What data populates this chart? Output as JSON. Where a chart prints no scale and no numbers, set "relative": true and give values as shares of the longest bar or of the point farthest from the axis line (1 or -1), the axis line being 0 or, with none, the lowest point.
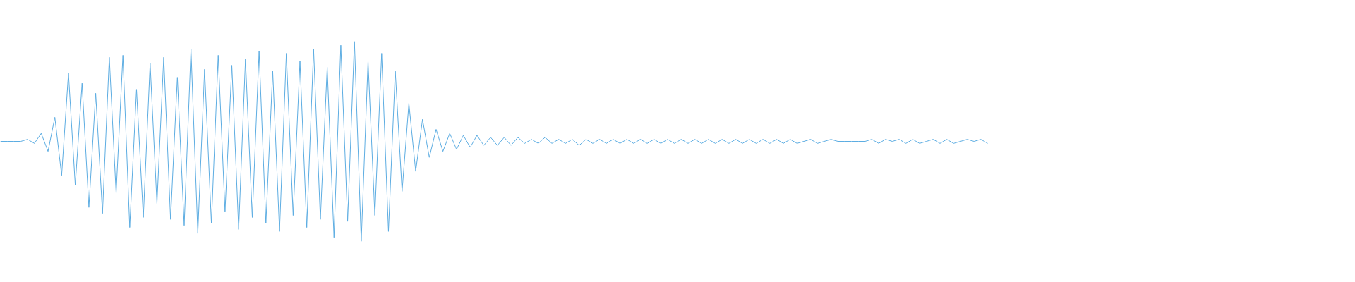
{
  "chart_data": {
    "type": "line",
    "relative": true,
    "tick_labels": false,
    "grid": false,
    "marker": "none",
    "line_style": "solid",
    "categories": [
      null,
      null,
      null,
      null,
      null,
      null,
      null,
      null,
      null,
      null,
      null,
      null,
      null,
      null,
      null,
      null,
      null,
      null,
      null,
      null,
      null,
      null,
      null,
      null,
      null,
      null,
      null,
      null,
      null,
      null,
      null,
      null,
      null,
      null,
      null,
      null,
      null,
      null,
      null,
      null,
      null,
      null,
      null,
      null,
      null,
      null,
      null,
      null,
      null,
      null,
      null,
      null,
      null,
      null,
      null,
      null,
      null,
      null,
      null,
      null,
      null,
      null,
      null,
      null,
      null,
      null,
      null,
      null,
      null,
      null,
      null,
      null,
      null,
      null,
      null,
      null,
      null,
      null,
      null,
      null,
      null,
      null,
      null,
      null,
      null,
      null,
      null,
      null,
      null,
      null,
      null,
      null,
      null,
      null,
      null,
      null,
      null,
      null,
      null,
      null,
      null,
      null,
      null,
      null,
      null,
      null,
      null,
      null,
      null,
      null,
      null,
      null,
      null,
      null,
      null,
      null,
      null,
      null,
      null,
      null,
      null,
      null,
      null,
      null,
      null,
      null,
      null,
      null,
      null,
      null,
      null,
      null,
      null,
      null,
      null,
      null,
      null,
      null,
      null,
      null,
      null,
      null,
      null,
      null,
      null,
      null,
      null,
      null,
      null,
      null,
      null,
      null,
      null,
      null,
      null,
      null,
      null,
      null,
      null,
      null,
      null,
      null,
      null,
      null,
      null,
      null,
      null,
      null,
      null,
      null,
      null,
      null,
      null,
      null,
      null,
      null,
      null,
      null,
      null,
      null,
      null,
      null,
      null,
      null,
      null,
      null,
      null,
      null,
      null,
      null,
      null,
      null,
      null,
      null,
      null,
      null,
      null,
      null,
      null,
      null
    ],
    "series": [
      {
        "color": "#5dade2",
        "values": [
          0.5,
          0.5,
          0.5,
          0.5,
          0.51,
          0.49,
          0.54,
          0.45,
          0.62,
          0.33,
          0.84,
          0.28,
          0.79,
          0.17,
          0.74,
          0.14,
          0.92,
          0.24,
          0.93,
          0.07,
          0.76,
          0.12,
          0.89,
          0.19,
          0.92,
          0.11,
          0.82,
          0.08,
          0.96,
          0.04,
          0.86,
          0.09,
          0.93,
          0.15,
          0.88,
          0.06,
          0.91,
          0.12,
          0.95,
          0.09,
          0.85,
          0.05,
          0.94,
          0.13,
          0.9,
          0.07,
          0.96,
          0.11,
          0.87,
          0.02,
          0.98,
          0.1,
          1.0,
          0.0,
          0.9,
          0.13,
          0.94,
          0.05,
          0.85,
          0.25,
          0.69,
          0.35,
          0.61,
          0.42,
          0.56,
          0.45,
          0.54,
          0.46,
          0.53,
          0.47,
          0.53,
          0.48,
          0.52,
          0.48,
          0.52,
          0.48,
          0.52,
          0.49,
          0.51,
          0.49,
          0.52,
          0.49,
          0.51,
          0.49,
          0.51,
          0.48,
          0.51,
          0.49,
          0.51,
          0.49,
          0.51,
          0.49,
          0.51,
          0.49,
          0.51,
          0.49,
          0.51,
          0.49,
          0.51,
          0.49,
          0.51,
          0.49,
          0.51,
          0.49,
          0.51,
          0.49,
          0.51,
          0.49,
          0.51,
          0.49,
          0.51,
          0.49,
          0.51,
          0.49,
          0.51,
          0.49,
          0.51,
          0.49,
          0.5,
          0.51,
          0.49,
          0.5,
          0.51,
          0.5,
          0.5,
          0.5,
          0.5,
          0.5,
          0.51,
          0.49,
          0.51,
          0.5,
          0.51,
          0.49,
          0.51,
          0.49,
          0.5,
          0.51,
          0.49,
          0.51,
          0.49,
          0.5,
          0.51,
          0.5,
          0.51,
          0.49,
          null,
          null,
          null,
          null,
          null,
          null,
          null,
          null,
          null,
          null,
          null,
          null,
          null,
          null,
          null,
          null,
          null,
          null,
          null,
          null,
          null,
          null,
          null,
          null,
          null,
          null,
          null,
          null,
          null,
          null,
          null,
          null,
          null,
          null,
          null,
          null,
          null,
          null,
          null,
          null,
          null,
          null,
          null,
          null,
          null,
          null,
          null,
          null,
          null,
          null,
          null,
          null,
          null,
          null
        ]
      }
    ]
  }
}
